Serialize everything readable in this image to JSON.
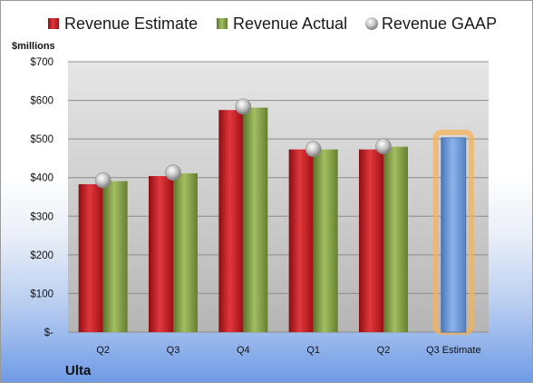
{
  "chart_data": {
    "type": "bar",
    "title": "",
    "ylabel": "$millions",
    "company": "Ulta",
    "categories": [
      "Q2",
      "Q3",
      "Q4",
      "Q1",
      "Q2",
      "Q3 Estimate"
    ],
    "ylim": [
      0,
      700
    ],
    "yticks": [
      0,
      100,
      200,
      300,
      400,
      500,
      600,
      700
    ],
    "ytick_labels": [
      "$-",
      "$100",
      "$200",
      "$300",
      "$400",
      "$500",
      "$600",
      "$700"
    ],
    "grid": true,
    "legend_position": "top",
    "series": [
      {
        "name": "Revenue Estimate",
        "type": "bar",
        "color": "#c0161c",
        "values": [
          383,
          404,
          575,
          473,
          473,
          null
        ]
      },
      {
        "name": "Revenue Actual",
        "type": "bar",
        "color": "#7e9b3f",
        "values": [
          391,
          411,
          581,
          473,
          480,
          null
        ]
      },
      {
        "name": "Revenue GAAP",
        "type": "scatter",
        "color": "#b0b0b0",
        "values": [
          393,
          413,
          584,
          474,
          481,
          null
        ]
      },
      {
        "name": "Q3 Estimate",
        "type": "bar",
        "color": "#6a98d8",
        "highlight": "#f5b25a",
        "values": [
          null,
          null,
          null,
          null,
          null,
          503
        ]
      }
    ]
  }
}
